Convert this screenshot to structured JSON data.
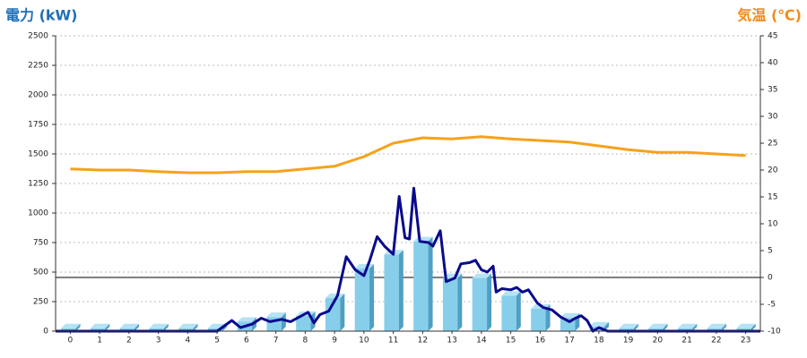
{
  "chart_data": {
    "type": "combo",
    "y_title": "電力 (kW)",
    "y2_title": "気温 (℃)",
    "categories": [
      "0",
      "1",
      "2",
      "3",
      "4",
      "5",
      "6",
      "7",
      "8",
      "9",
      "10",
      "11",
      "12",
      "13",
      "14",
      "15",
      "16",
      "17",
      "18",
      "19",
      "20",
      "21",
      "22",
      "23"
    ],
    "xlim": [
      -0.5,
      23.5
    ],
    "ylim": [
      0,
      2500
    ],
    "yticks": [
      0,
      250,
      500,
      750,
      1000,
      1250,
      1500,
      1750,
      2000,
      2250,
      2500
    ],
    "y2lim": [
      -10,
      45
    ],
    "y2ticks": [
      -10,
      -5,
      0,
      5,
      10,
      15,
      20,
      25,
      30,
      35,
      40,
      45
    ],
    "grid": true,
    "y2_zero_line": true,
    "series": [
      {
        "type": "bar3d",
        "color": "#87ceeb",
        "side_color": "#4f9fc4",
        "values": [
          25,
          25,
          25,
          25,
          25,
          25,
          80,
          120,
          130,
          280,
          530,
          650,
          760,
          450,
          450,
          300,
          190,
          115,
          40,
          25,
          25,
          25,
          25,
          25
        ]
      },
      {
        "type": "line",
        "color": "#0a0a8c",
        "x": [
          -0.5,
          5.0,
          5.5,
          5.8,
          6.2,
          6.5,
          6.8,
          7.2,
          7.5,
          7.8,
          8.1,
          8.3,
          8.5,
          8.8,
          9.1,
          9.4,
          9.7,
          10.0,
          10.2,
          10.45,
          10.7,
          11.0,
          11.2,
          11.4,
          11.55,
          11.7,
          11.9,
          12.2,
          12.35,
          12.6,
          12.8,
          13.1,
          13.3,
          13.6,
          13.8,
          14.0,
          14.2,
          14.4,
          14.5,
          14.7,
          15.0,
          15.2,
          15.4,
          15.6,
          15.9,
          16.1,
          16.4,
          16.7,
          17.0,
          17.2,
          17.4,
          17.6,
          17.8,
          18.0,
          18.3,
          23.5
        ],
        "values": [
          0,
          0,
          90,
          30,
          60,
          110,
          80,
          100,
          80,
          120,
          160,
          70,
          140,
          170,
          300,
          630,
          520,
          470,
          600,
          800,
          720,
          650,
          1140,
          790,
          780,
          1210,
          760,
          750,
          720,
          850,
          420,
          450,
          570,
          580,
          600,
          520,
          500,
          550,
          330,
          360,
          350,
          370,
          330,
          350,
          240,
          200,
          180,
          120,
          80,
          110,
          130,
          90,
          0,
          30,
          0,
          0
        ]
      },
      {
        "type": "line",
        "axis": "y2",
        "color": "#f5a21c",
        "values": [
          20.2,
          20.0,
          20.0,
          19.7,
          19.5,
          19.5,
          19.7,
          19.7,
          20.2,
          20.7,
          22.5,
          25.0,
          26.0,
          25.8,
          26.2,
          25.8,
          25.5,
          25.2,
          24.5,
          23.8,
          23.3,
          23.3,
          23.0,
          22.7
        ]
      }
    ]
  }
}
